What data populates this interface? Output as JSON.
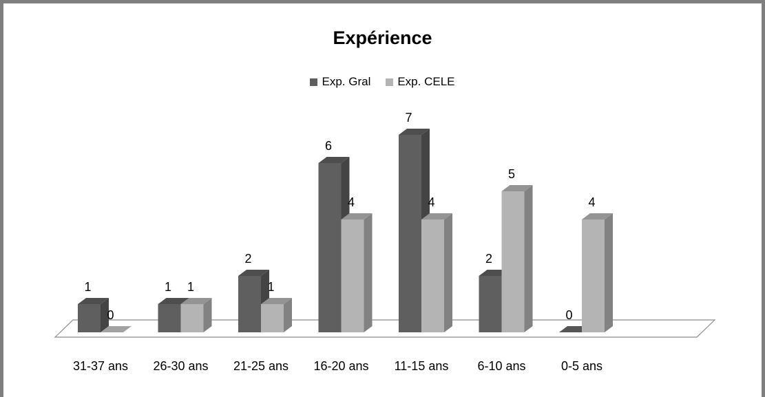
{
  "chart_data": {
    "type": "bar",
    "title": "Expérience",
    "categories": [
      "31-37 ans",
      "26-30 ans",
      "21-25 ans",
      "16-20 ans",
      "11-15 ans",
      "6-10 ans",
      "0-5 ans"
    ],
    "series": [
      {
        "name": "Exp. Gral",
        "values": [
          1,
          1,
          2,
          6,
          7,
          2,
          0
        ],
        "color": "#5f5f5f"
      },
      {
        "name": "Exp. CELE",
        "values": [
          0,
          1,
          1,
          4,
          4,
          5,
          4
        ],
        "color": "#b4b4b4"
      }
    ],
    "ylim": [
      0,
      7
    ],
    "grid": false,
    "legend_position": "top-center",
    "style": "3d-clustered-column"
  }
}
